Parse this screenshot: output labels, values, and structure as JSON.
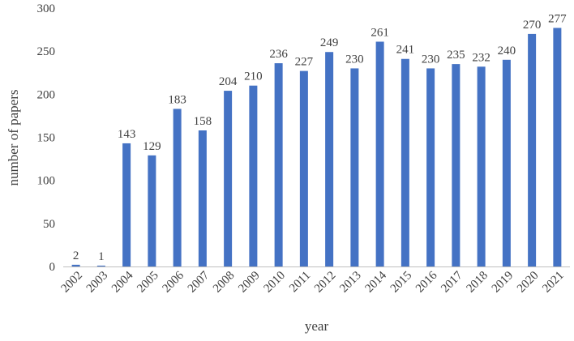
{
  "chart_data": {
    "type": "bar",
    "title": "",
    "xlabel": "year",
    "ylabel": "number of papers",
    "categories": [
      "2002",
      "2003",
      "2004",
      "2005",
      "2006",
      "2007",
      "2008",
      "2009",
      "2010",
      "2011",
      "2012",
      "2013",
      "2014",
      "2015",
      "2016",
      "2017",
      "2018",
      "2019",
      "2020",
      "2021"
    ],
    "values": [
      2,
      1,
      143,
      129,
      183,
      158,
      204,
      210,
      236,
      227,
      249,
      230,
      261,
      241,
      230,
      235,
      232,
      240,
      270,
      277
    ],
    "data_labels": [
      "2",
      "1",
      "143",
      "129",
      "183",
      "158",
      "204",
      "210",
      "236",
      "227",
      "249",
      "230",
      "261",
      "241",
      "230",
      "235",
      "232",
      "240",
      "270",
      "277"
    ],
    "ylim": [
      0,
      300
    ],
    "yticks": [
      0,
      50,
      100,
      150,
      200,
      250,
      300
    ],
    "ytick_labels": [
      "0",
      "50",
      "100",
      "150",
      "200",
      "250",
      "300"
    ],
    "grid": false,
    "legend": "none",
    "bar_color": "#4472C4",
    "axis_color": "#BFBFBF",
    "text_color": "#404040"
  }
}
